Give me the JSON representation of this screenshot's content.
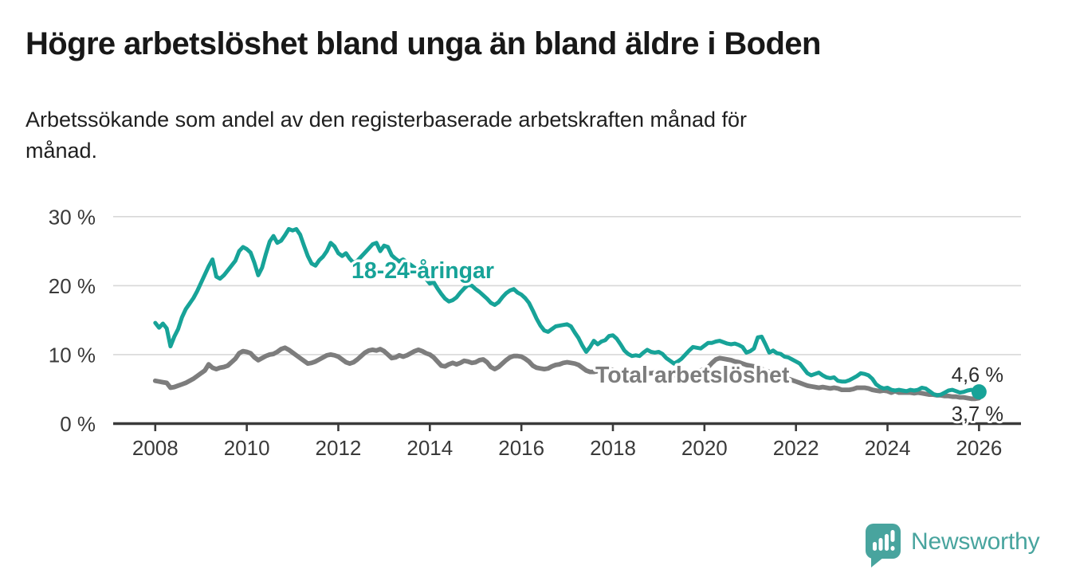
{
  "header": {
    "title": "Högre arbetslöshet bland unga än bland äldre i Boden",
    "subtitle": "Arbetssökande som andel av den registerbaserade arbetskraften månad för månad.",
    "subtitle_lines": [
      "Arbetssökande som andel av den registerbaserade arbetskraften månad för",
      "månad."
    ]
  },
  "branding": {
    "logo_text": "Newsworthy",
    "logo_color": "#48a49e",
    "logo_icon": "bar-chart-speech-bubble-icon"
  },
  "chart_data": {
    "type": "line",
    "title": "Högre arbetslöshet bland unga än bland äldre i Boden",
    "xlabel": "",
    "ylabel": "",
    "x_unit": "months",
    "x_start_year": 2008,
    "points_per_year": 12,
    "x_ticks": [
      2008,
      2010,
      2012,
      2014,
      2016,
      2018,
      2020,
      2022,
      2024,
      2026
    ],
    "y_ticks": [
      0,
      10,
      20,
      30
    ],
    "y_tick_suffix": " %",
    "ylim": [
      0,
      31.5
    ],
    "xlim": [
      2007.1,
      2026.9
    ],
    "grid": "horizontal",
    "legend_position": "inline-labels",
    "colors": {
      "youth": "#17a398",
      "total": "#7d7d7d",
      "axis": "#3a3a3a",
      "gridline": "#d8d8d8"
    },
    "series": [
      {
        "name": "18-24-åringar",
        "color": "#17a398",
        "end_label": "4,6 %",
        "end_value": 4.6,
        "end_marker": true,
        "values": [
          14.6,
          13.9,
          14.5,
          13.8,
          11.2,
          12.6,
          13.7,
          15.4,
          16.6,
          17.4,
          18.2,
          19.2,
          20.4,
          21.6,
          22.8,
          23.8,
          21.3,
          21.0,
          21.5,
          22.2,
          22.9,
          23.6,
          25.0,
          25.6,
          25.3,
          24.8,
          23.3,
          21.5,
          22.6,
          24.6,
          26.4,
          27.2,
          26.2,
          26.5,
          27.3,
          28.2,
          28.0,
          28.2,
          27.4,
          25.8,
          24.3,
          23.2,
          22.9,
          23.7,
          24.2,
          25.0,
          26.2,
          25.7,
          24.7,
          24.3,
          24.7,
          23.9,
          23.3,
          23.6,
          24.2,
          24.8,
          25.4,
          26.0,
          26.2,
          25.0,
          25.8,
          25.6,
          24.4,
          23.9,
          23.5,
          23.8,
          23.4,
          23.0,
          22.6,
          22.3,
          21.8,
          21.0,
          20.3,
          20.5,
          19.6,
          18.8,
          18.1,
          17.7,
          17.9,
          18.3,
          19.0,
          19.6,
          20.1,
          20.0,
          19.5,
          19.1,
          18.6,
          18.1,
          17.5,
          17.2,
          17.6,
          18.3,
          18.9,
          19.3,
          19.5,
          19.0,
          18.7,
          18.2,
          17.5,
          16.4,
          15.2,
          14.2,
          13.5,
          13.3,
          13.7,
          14.1,
          14.2,
          14.3,
          14.4,
          14.1,
          13.2,
          12.4,
          11.3,
          10.4,
          11.1,
          12.0,
          11.5,
          11.9,
          12.1,
          12.7,
          12.8,
          12.3,
          11.5,
          10.6,
          10.1,
          9.8,
          9.9,
          9.8,
          10.3,
          10.7,
          10.4,
          10.3,
          10.4,
          10.1,
          9.5,
          9.1,
          8.7,
          9.0,
          9.4,
          10.0,
          10.6,
          11.1,
          11.0,
          10.9,
          11.3,
          11.7,
          11.7,
          11.9,
          12.0,
          11.8,
          11.6,
          11.5,
          11.6,
          11.4,
          11.1,
          10.3,
          10.5,
          10.9,
          12.5,
          12.6,
          11.5,
          10.3,
          10.6,
          10.2,
          10.1,
          9.7,
          9.6,
          9.3,
          9.0,
          8.7,
          8.0,
          7.3,
          7.0,
          7.2,
          7.4,
          7.0,
          6.7,
          6.6,
          6.7,
          6.2,
          6.1,
          6.1,
          6.3,
          6.6,
          6.9,
          7.3,
          7.2,
          7.0,
          6.5,
          5.7,
          5.3,
          5.1,
          5.2,
          4.9,
          4.8,
          4.9,
          4.8,
          4.7,
          4.9,
          4.8,
          4.9,
          5.2,
          5.1,
          4.7,
          4.3,
          4.1,
          4.2,
          4.5,
          4.8,
          4.9,
          4.7,
          4.5,
          4.6,
          4.8,
          4.9,
          4.7,
          4.6
        ]
      },
      {
        "name": "Total arbetslöshet",
        "color": "#7d7d7d",
        "end_label": "3,7 %",
        "end_value": 3.7,
        "end_marker": false,
        "values": [
          6.2,
          6.1,
          6.0,
          5.9,
          5.2,
          5.3,
          5.5,
          5.7,
          5.9,
          6.2,
          6.5,
          6.9,
          7.3,
          7.7,
          8.6,
          8.1,
          7.9,
          8.1,
          8.2,
          8.4,
          8.9,
          9.4,
          10.2,
          10.5,
          10.4,
          10.2,
          9.6,
          9.2,
          9.5,
          9.8,
          10.0,
          10.1,
          10.4,
          10.8,
          11.0,
          10.7,
          10.3,
          9.9,
          9.5,
          9.1,
          8.7,
          8.8,
          9.0,
          9.3,
          9.6,
          9.9,
          10.0,
          9.9,
          9.7,
          9.3,
          8.9,
          8.7,
          8.9,
          9.3,
          9.8,
          10.3,
          10.6,
          10.7,
          10.6,
          10.8,
          10.5,
          10.0,
          9.5,
          9.6,
          9.9,
          9.7,
          9.9,
          10.2,
          10.5,
          10.7,
          10.5,
          10.2,
          10.0,
          9.6,
          9.0,
          8.4,
          8.3,
          8.6,
          8.8,
          8.6,
          8.8,
          9.1,
          9.0,
          8.8,
          8.9,
          9.2,
          9.3,
          8.9,
          8.2,
          7.9,
          8.2,
          8.7,
          9.2,
          9.6,
          9.8,
          9.8,
          9.7,
          9.4,
          9.0,
          8.4,
          8.1,
          8.0,
          7.9,
          8.0,
          8.3,
          8.5,
          8.6,
          8.8,
          8.9,
          8.8,
          8.7,
          8.5,
          8.1,
          7.7,
          7.5,
          7.5,
          7.6,
          7.7,
          7.8,
          7.9,
          7.8,
          7.6,
          7.4,
          7.2,
          7.1,
          7.0,
          7.0,
          7.1,
          7.2,
          7.3,
          7.3,
          7.4,
          7.4,
          7.3,
          7.2,
          7.1,
          7.0,
          7.1,
          7.2,
          7.3,
          7.4,
          7.5,
          7.6,
          7.7,
          7.9,
          8.2,
          8.8,
          9.3,
          9.5,
          9.4,
          9.3,
          9.2,
          9.0,
          8.9,
          8.7,
          8.5,
          8.4,
          8.3,
          8.1,
          7.9,
          7.7,
          7.5,
          7.3,
          7.1,
          6.9,
          6.7,
          6.5,
          6.3,
          6.1,
          5.9,
          5.7,
          5.5,
          5.4,
          5.3,
          5.2,
          5.3,
          5.2,
          5.1,
          5.2,
          5.1,
          4.9,
          4.9,
          4.9,
          5.0,
          5.2,
          5.2,
          5.2,
          5.1,
          4.9,
          4.8,
          4.7,
          4.8,
          4.7,
          4.5,
          4.7,
          4.5,
          4.5,
          4.5,
          4.5,
          4.4,
          4.5,
          4.4,
          4.3,
          4.2,
          4.2,
          4.1,
          4.1,
          4.0,
          4.0,
          3.9,
          3.9,
          3.8,
          3.8,
          3.7,
          3.6,
          3.6,
          3.7
        ]
      }
    ]
  }
}
